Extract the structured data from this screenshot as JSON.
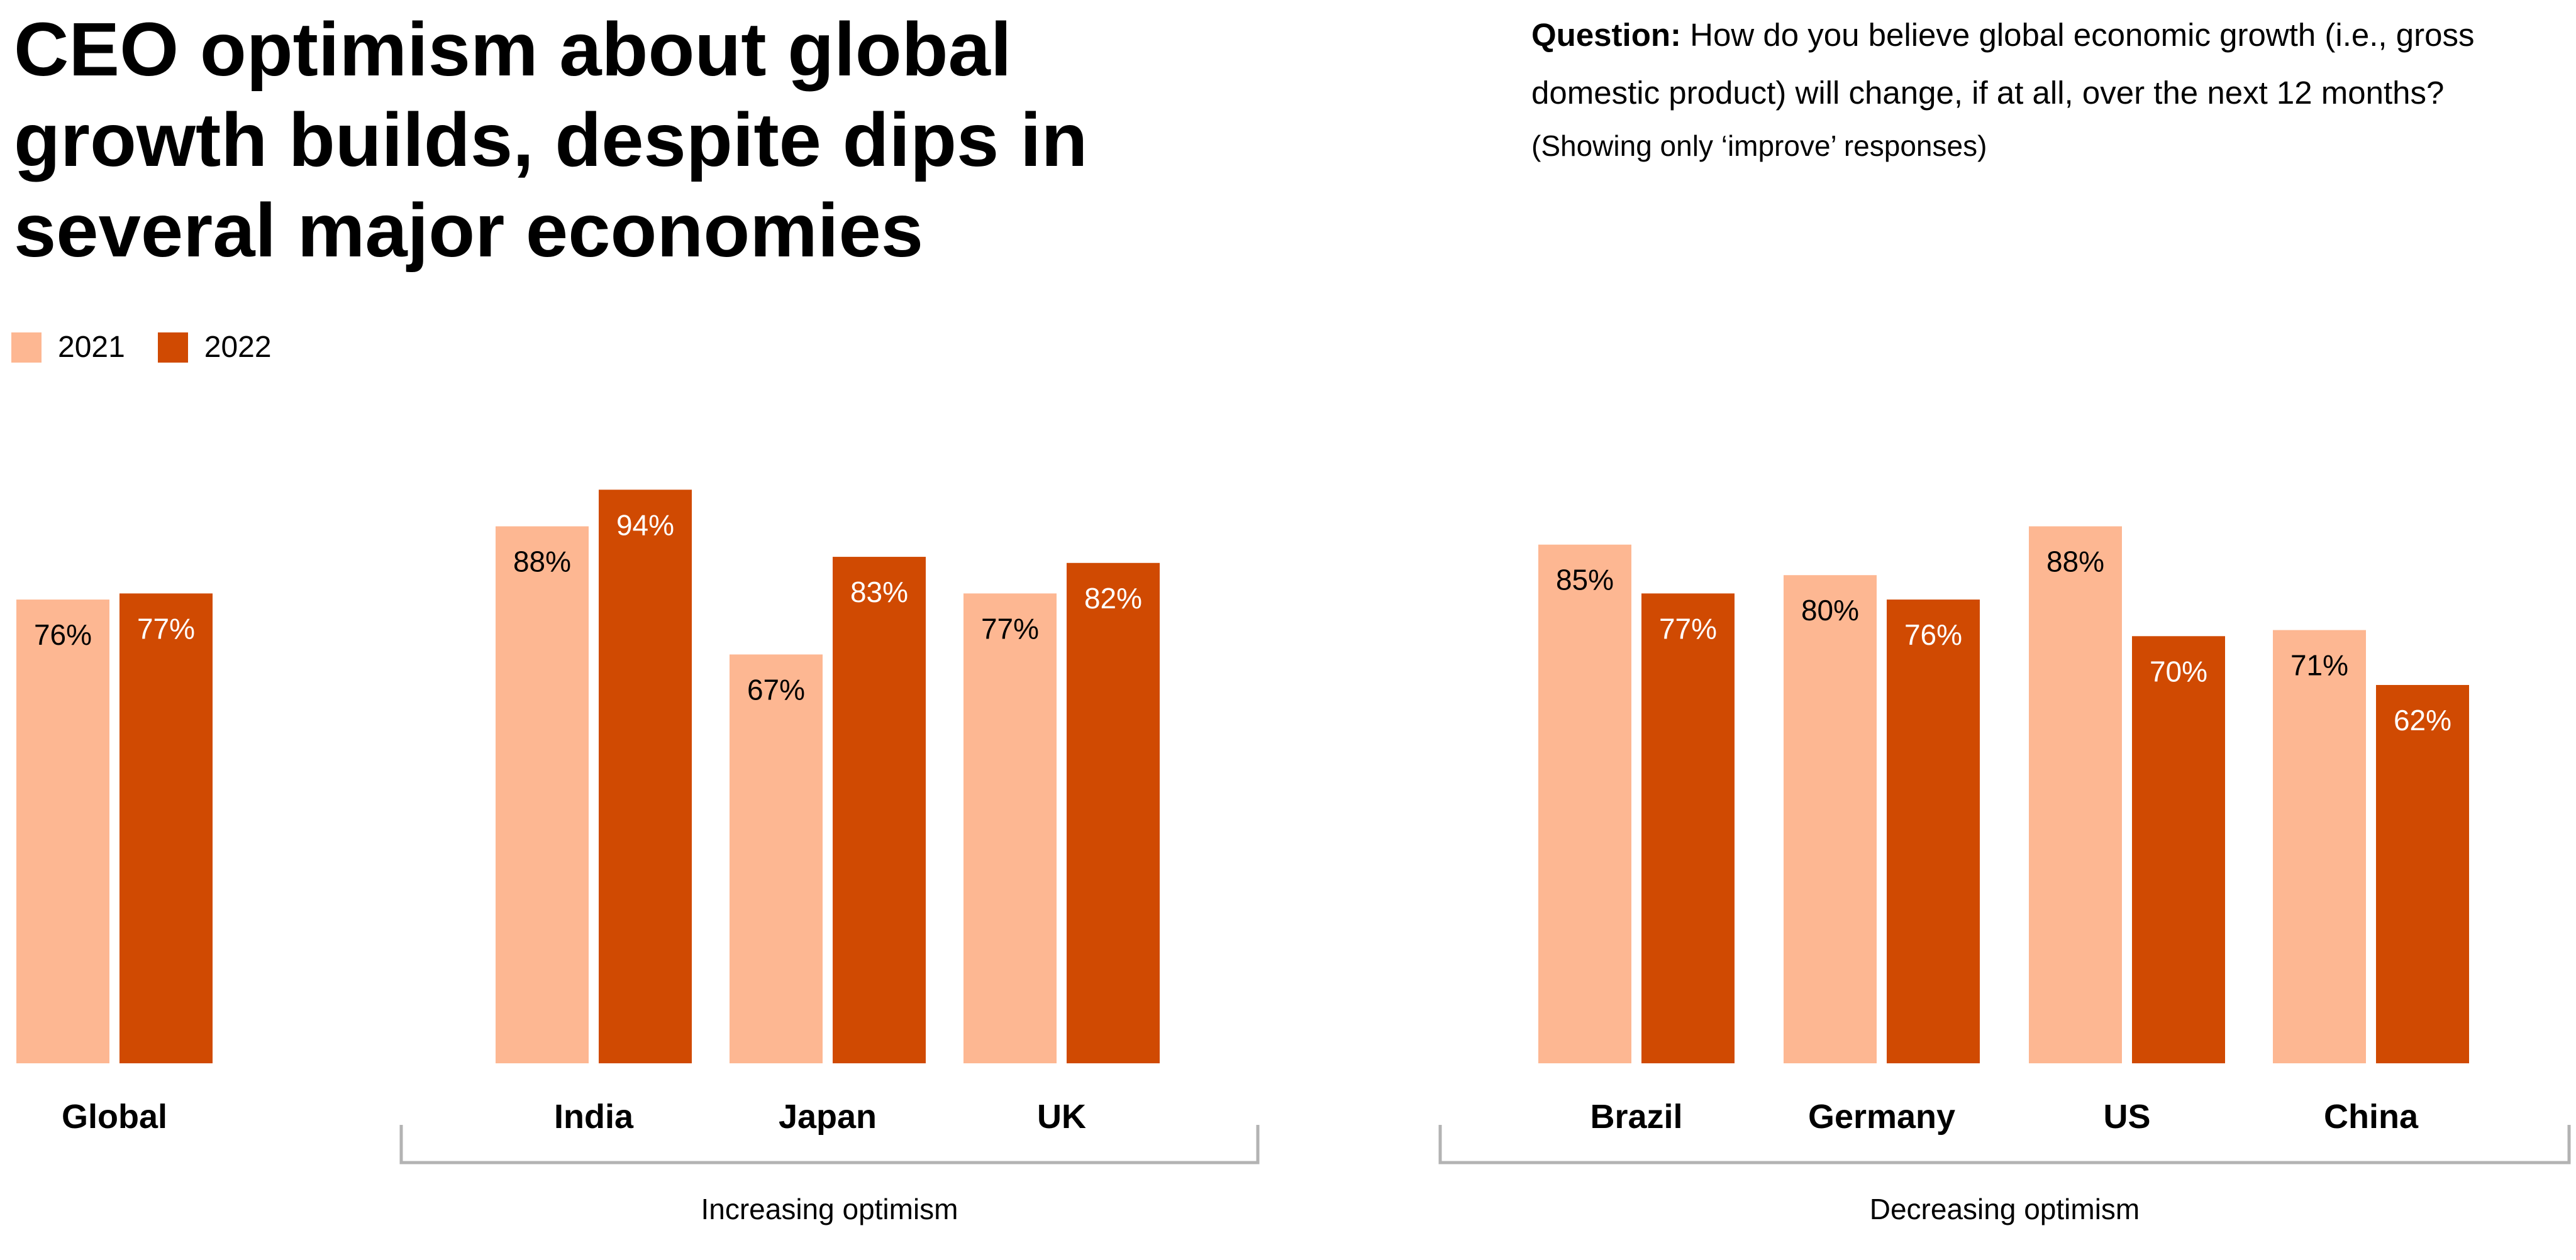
{
  "title": "CEO optimism about global growth builds, despite dips in several major economies",
  "question_lead": "Question:",
  "question_text": "How do you believe global economic growth (i.e., gross domestic product) will change, if at all, over the next 12 months?",
  "note": "(Showing only ‘improve’ responses)",
  "colors": {
    "2021": "#fdb792",
    "2022": "#d04a02",
    "bracket": "#b3b3b3"
  },
  "chart_data": {
    "type": "bar",
    "categories": [
      "Global",
      "India",
      "Japan",
      "UK",
      "Brazil",
      "Germany",
      "US",
      "China"
    ],
    "series": [
      {
        "name": "2021",
        "values": [
          76,
          88,
          67,
          77,
          85,
          80,
          88,
          71
        ]
      },
      {
        "name": "2022",
        "values": [
          77,
          94,
          83,
          82,
          77,
          76,
          70,
          62
        ]
      }
    ],
    "data_labels_suffix": "%",
    "ylim": [
      0,
      100
    ],
    "groups": [
      {
        "label": "Increasing optimism",
        "categories": [
          "India",
          "Japan",
          "UK"
        ]
      },
      {
        "label": "Decreasing optimism",
        "categories": [
          "Brazil",
          "Germany",
          "US",
          "China"
        ]
      }
    ],
    "legend": "top-left",
    "grid": false,
    "xlabel": "",
    "ylabel": ""
  }
}
